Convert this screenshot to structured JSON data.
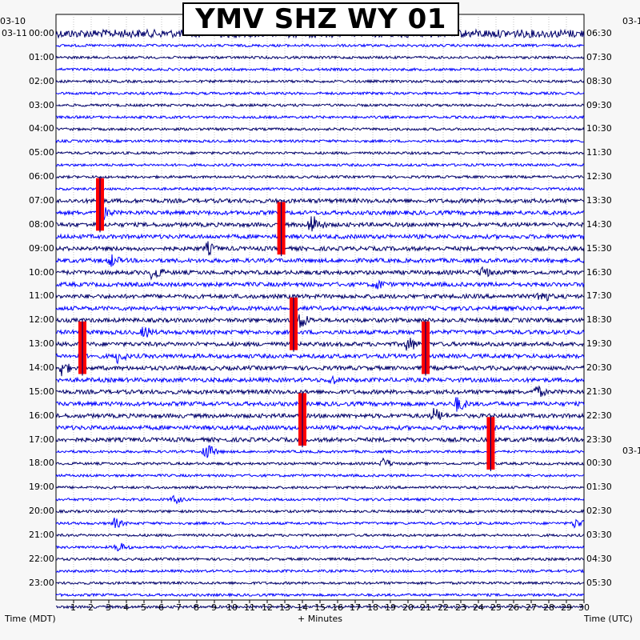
{
  "chart_data": {
    "type": "line",
    "title": "YMV SHZ WY 01",
    "xlabel": "+ Minutes",
    "left_axis_label": "Time (MDT)",
    "right_axis_label": "Time (UTC)",
    "x_range": [
      0,
      30
    ],
    "x_ticks": [
      "1",
      "2",
      "3",
      "4",
      "5",
      "6",
      "7",
      "8",
      "9",
      "10",
      "11",
      "12",
      "13",
      "14",
      "15",
      "16",
      "17",
      "18",
      "19",
      "20",
      "21",
      "22",
      "23",
      "24",
      "25",
      "26",
      "27",
      "28",
      "29",
      "30"
    ],
    "trace_count": 49,
    "trace_colors": [
      "#00006b",
      "#0000ff"
    ],
    "clip_color": "#ff0000",
    "left_date_labels": [
      "03-10",
      "03-11"
    ],
    "right_date_labels": [
      "03-1",
      "03-1"
    ],
    "left_hour_labels": [
      "00:00",
      "01:00",
      "02:00",
      "03:00",
      "04:00",
      "05:00",
      "06:00",
      "07:00",
      "08:00",
      "09:00",
      "10:00",
      "11:00",
      "12:00",
      "13:00",
      "14:00",
      "15:00",
      "16:00",
      "17:00",
      "18:00",
      "19:00",
      "20:00",
      "21:00",
      "22:00",
      "23:00"
    ],
    "right_hour_labels": [
      "06:30",
      "07:30",
      "08:30",
      "09:30",
      "10:30",
      "11:30",
      "12:30",
      "13:30",
      "14:30",
      "15:30",
      "16:30",
      "17:30",
      "18:30",
      "19:30",
      "20:30",
      "21:30",
      "22:30",
      "23:30",
      "00:30",
      "01:30",
      "02:30",
      "03:30",
      "04:30",
      "05:30"
    ],
    "clipped_events": [
      {
        "trace": 13,
        "minute": 2.5,
        "span": 4
      },
      {
        "trace": 15,
        "minute": 12.8,
        "span": 4
      },
      {
        "trace": 23,
        "minute": 13.5,
        "span": 4
      },
      {
        "trace": 25,
        "minute": 1.5,
        "span": 4
      },
      {
        "trace": 25,
        "minute": 21.0,
        "span": 4
      },
      {
        "trace": 31,
        "minute": 14.0,
        "span": 4
      },
      {
        "trace": 33,
        "minute": 24.7,
        "span": 4
      }
    ],
    "bursts": [
      {
        "trace": 15,
        "minute": 2.5,
        "amp": 14
      },
      {
        "trace": 16,
        "minute": 14.5,
        "amp": 16
      },
      {
        "trace": 18,
        "minute": 8.6,
        "amp": 10
      },
      {
        "trace": 19,
        "minute": 3.1,
        "amp": 10
      },
      {
        "trace": 20,
        "minute": 5.5,
        "amp": 12
      },
      {
        "trace": 20,
        "minute": 24.2,
        "amp": 10
      },
      {
        "trace": 21,
        "minute": 18.2,
        "amp": 9
      },
      {
        "trace": 22,
        "minute": 27.5,
        "amp": 12
      },
      {
        "trace": 24,
        "minute": 13.8,
        "amp": 14
      },
      {
        "trace": 25,
        "minute": 5.0,
        "amp": 10
      },
      {
        "trace": 26,
        "minute": 20.0,
        "amp": 12
      },
      {
        "trace": 27,
        "minute": 3.5,
        "amp": 10
      },
      {
        "trace": 28,
        "minute": 0.3,
        "amp": 12
      },
      {
        "trace": 29,
        "minute": 15.6,
        "amp": 8
      },
      {
        "trace": 30,
        "minute": 27.3,
        "amp": 10
      },
      {
        "trace": 31,
        "minute": 22.8,
        "amp": 12
      },
      {
        "trace": 32,
        "minute": 21.5,
        "amp": 12
      },
      {
        "trace": 35,
        "minute": 8.5,
        "amp": 12
      },
      {
        "trace": 36,
        "minute": 18.6,
        "amp": 8
      },
      {
        "trace": 39,
        "minute": 6.7,
        "amp": 7
      },
      {
        "trace": 41,
        "minute": 3.3,
        "amp": 8
      },
      {
        "trace": 43,
        "minute": 3.5,
        "amp": 8
      },
      {
        "trace": 41,
        "minute": 29.5,
        "amp": 8
      }
    ]
  }
}
